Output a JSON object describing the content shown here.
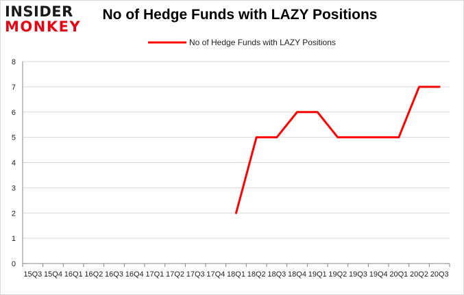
{
  "brand": {
    "line1": "INSIDER",
    "line2": "MONKEY"
  },
  "colors": {
    "series": "#ff0000",
    "grid": "#d9d9d9",
    "axis": "#868686"
  },
  "chart_data": {
    "type": "line",
    "title": "No of Hedge Funds with LAZY Positions",
    "xlabel": "",
    "ylabel": "",
    "ylim": [
      0,
      8
    ],
    "yticks": [
      0,
      1,
      2,
      3,
      4,
      5,
      6,
      7,
      8
    ],
    "grid": true,
    "legend_position": "top",
    "categories": [
      "15Q3",
      "15Q4",
      "16Q1",
      "16Q2",
      "16Q3",
      "16Q4",
      "17Q1",
      "17Q2",
      "17Q3",
      "17Q4",
      "18Q1",
      "18Q2",
      "18Q3",
      "18Q4",
      "19Q1",
      "19Q2",
      "19Q3",
      "19Q4",
      "20Q1",
      "20Q2",
      "20Q3"
    ],
    "series": [
      {
        "name": "No of Hedge Funds with LAZY Positions",
        "values": [
          null,
          null,
          null,
          null,
          null,
          null,
          null,
          null,
          null,
          null,
          2,
          5,
          5,
          6,
          6,
          5,
          5,
          5,
          5,
          7,
          7
        ]
      }
    ]
  }
}
